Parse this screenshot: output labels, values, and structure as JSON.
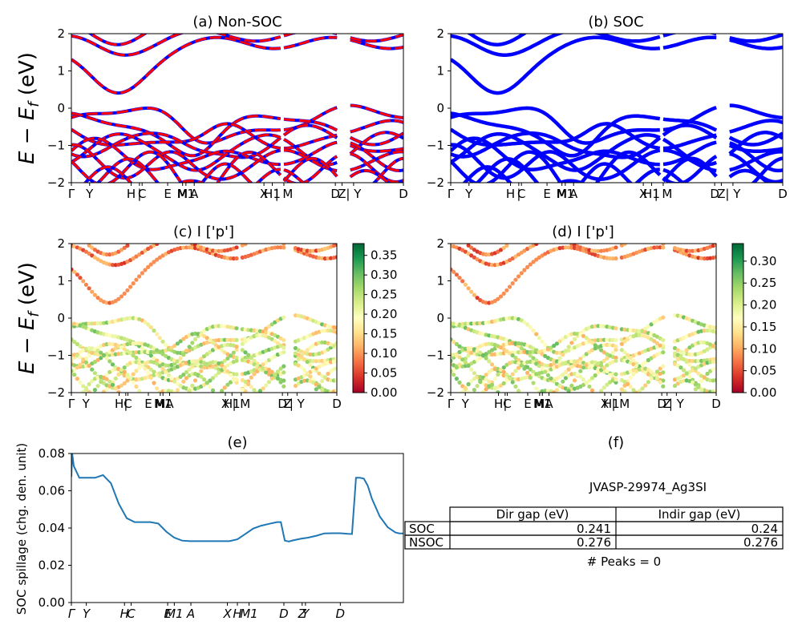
{
  "chart_data": [
    {
      "type": "line",
      "title": "(a) Non-SOC",
      "ylabel": "E − E_f (eV)",
      "ylim": [
        -2,
        2
      ],
      "yticks": [
        "2",
        "1",
        "0",
        "−1",
        "−2"
      ],
      "xticks": [
        "Γ",
        "Y",
        "H",
        "|",
        "C",
        "E",
        "M",
        "M1",
        "A",
        "X",
        "H1",
        "| M",
        "D",
        "Z",
        "| Y",
        "D"
      ],
      "series": [
        {
          "color": "#0000ff",
          "style": "solid"
        },
        {
          "color": "#ff0000",
          "style": "dashed"
        }
      ]
    },
    {
      "type": "line",
      "title": "(b) SOC",
      "ylim": [
        -2,
        2
      ],
      "yticks": [
        "2",
        "1",
        "0",
        "−1",
        "−2"
      ],
      "xticks": [
        "Γ",
        "Y",
        "H",
        "|",
        "C",
        "E",
        "M",
        "M1",
        "A",
        "X",
        "H1",
        "| M",
        "D",
        "Z",
        "| Y",
        "D"
      ],
      "series": [
        {
          "color": "#0000ff",
          "style": "solid"
        }
      ]
    },
    {
      "type": "scatter",
      "title": "(c)  I ['p']",
      "ylabel": "E − E_f (eV)",
      "ylim": [
        -2,
        2
      ],
      "yticks": [
        "2",
        "1",
        "0",
        "−1",
        "−2"
      ],
      "colorbar": {
        "min": 0.0,
        "max": 0.38,
        "ticks": [
          "0.35",
          "0.30",
          "0.25",
          "0.20",
          "0.15",
          "0.10",
          "0.05",
          "0.00"
        ]
      },
      "xticks": [
        "Γ",
        "Y",
        "H",
        "|",
        "C",
        "E",
        "M",
        "M1",
        "A",
        "X",
        "H1",
        "| M",
        "D",
        "Z",
        "| Y",
        "D"
      ]
    },
    {
      "type": "scatter",
      "title": "(d) I ['p']",
      "ylim": [
        -2,
        2
      ],
      "yticks": [
        "2",
        "1",
        "0",
        "−1",
        "−2"
      ],
      "colorbar": {
        "min": 0.0,
        "max": 0.34,
        "ticks": [
          "0.30",
          "0.25",
          "0.20",
          "0.15",
          "0.10",
          "0.05",
          "0.00"
        ]
      },
      "xticks": [
        "Γ",
        "Y",
        "H",
        "|",
        "C",
        "E",
        "M",
        "M1",
        "A",
        "X",
        "H1",
        "| M",
        "D",
        "Z",
        "| Y",
        "D"
      ]
    },
    {
      "type": "line",
      "title": "(e)",
      "ylabel": "SOC spillage (chg. den. unit)",
      "ylim": [
        0.0,
        0.083
      ],
      "yticks": [
        "0.08",
        "0.06",
        "0.04",
        "0.02",
        "0.00"
      ],
      "xticks": [
        "Γ",
        "Y",
        "H",
        "C",
        "E",
        "M1",
        "A",
        "X",
        "H",
        "M1",
        "D",
        "Z",
        "Y",
        "D"
      ],
      "x": [
        0,
        1,
        3,
        10,
        20,
        25,
        30,
        40,
        50,
        60,
        70,
        80,
        90,
        100,
        110,
        120,
        130,
        140,
        150,
        160,
        170,
        180,
        190,
        200,
        210,
        220,
        230,
        240,
        250,
        260,
        265,
        270,
        275,
        280,
        290,
        300,
        310,
        320,
        330,
        340,
        350,
        355,
        360,
        365,
        370,
        375,
        380,
        390,
        400,
        410,
        415,
        420
      ],
      "values": [
        0.07,
        0.083,
        0.076,
        0.0695,
        0.0695,
        0.0695,
        0.0695,
        0.071,
        0.0665,
        0.055,
        0.047,
        0.0448,
        0.0448,
        0.0448,
        0.044,
        0.0395,
        0.0362,
        0.0345,
        0.0342,
        0.0342,
        0.0342,
        0.0342,
        0.0342,
        0.0342,
        0.0352,
        0.0382,
        0.0412,
        0.0428,
        0.0438,
        0.0448,
        0.0448,
        0.0345,
        0.034,
        0.0346,
        0.0355,
        0.0362,
        0.0372,
        0.0385,
        0.0386,
        0.0386,
        0.0383,
        0.0382,
        0.0695,
        0.0695,
        0.069,
        0.065,
        0.058,
        0.048,
        0.042,
        0.039,
        0.0385,
        0.0385
      ],
      "xmax": 420,
      "color": "#1f77b4"
    }
  ],
  "panel_f": {
    "title": "(f)",
    "material": "JVASP-29974_Ag3SI",
    "headers": [
      "",
      "Dir gap (eV)",
      "Indir gap (eV)"
    ],
    "rows": [
      {
        "label": "SOC",
        "dir": "0.241",
        "indir": "0.24"
      },
      {
        "label": "NSOC",
        "dir": "0.276",
        "indir": "0.276"
      }
    ],
    "peaks": "# Peaks = 0"
  }
}
